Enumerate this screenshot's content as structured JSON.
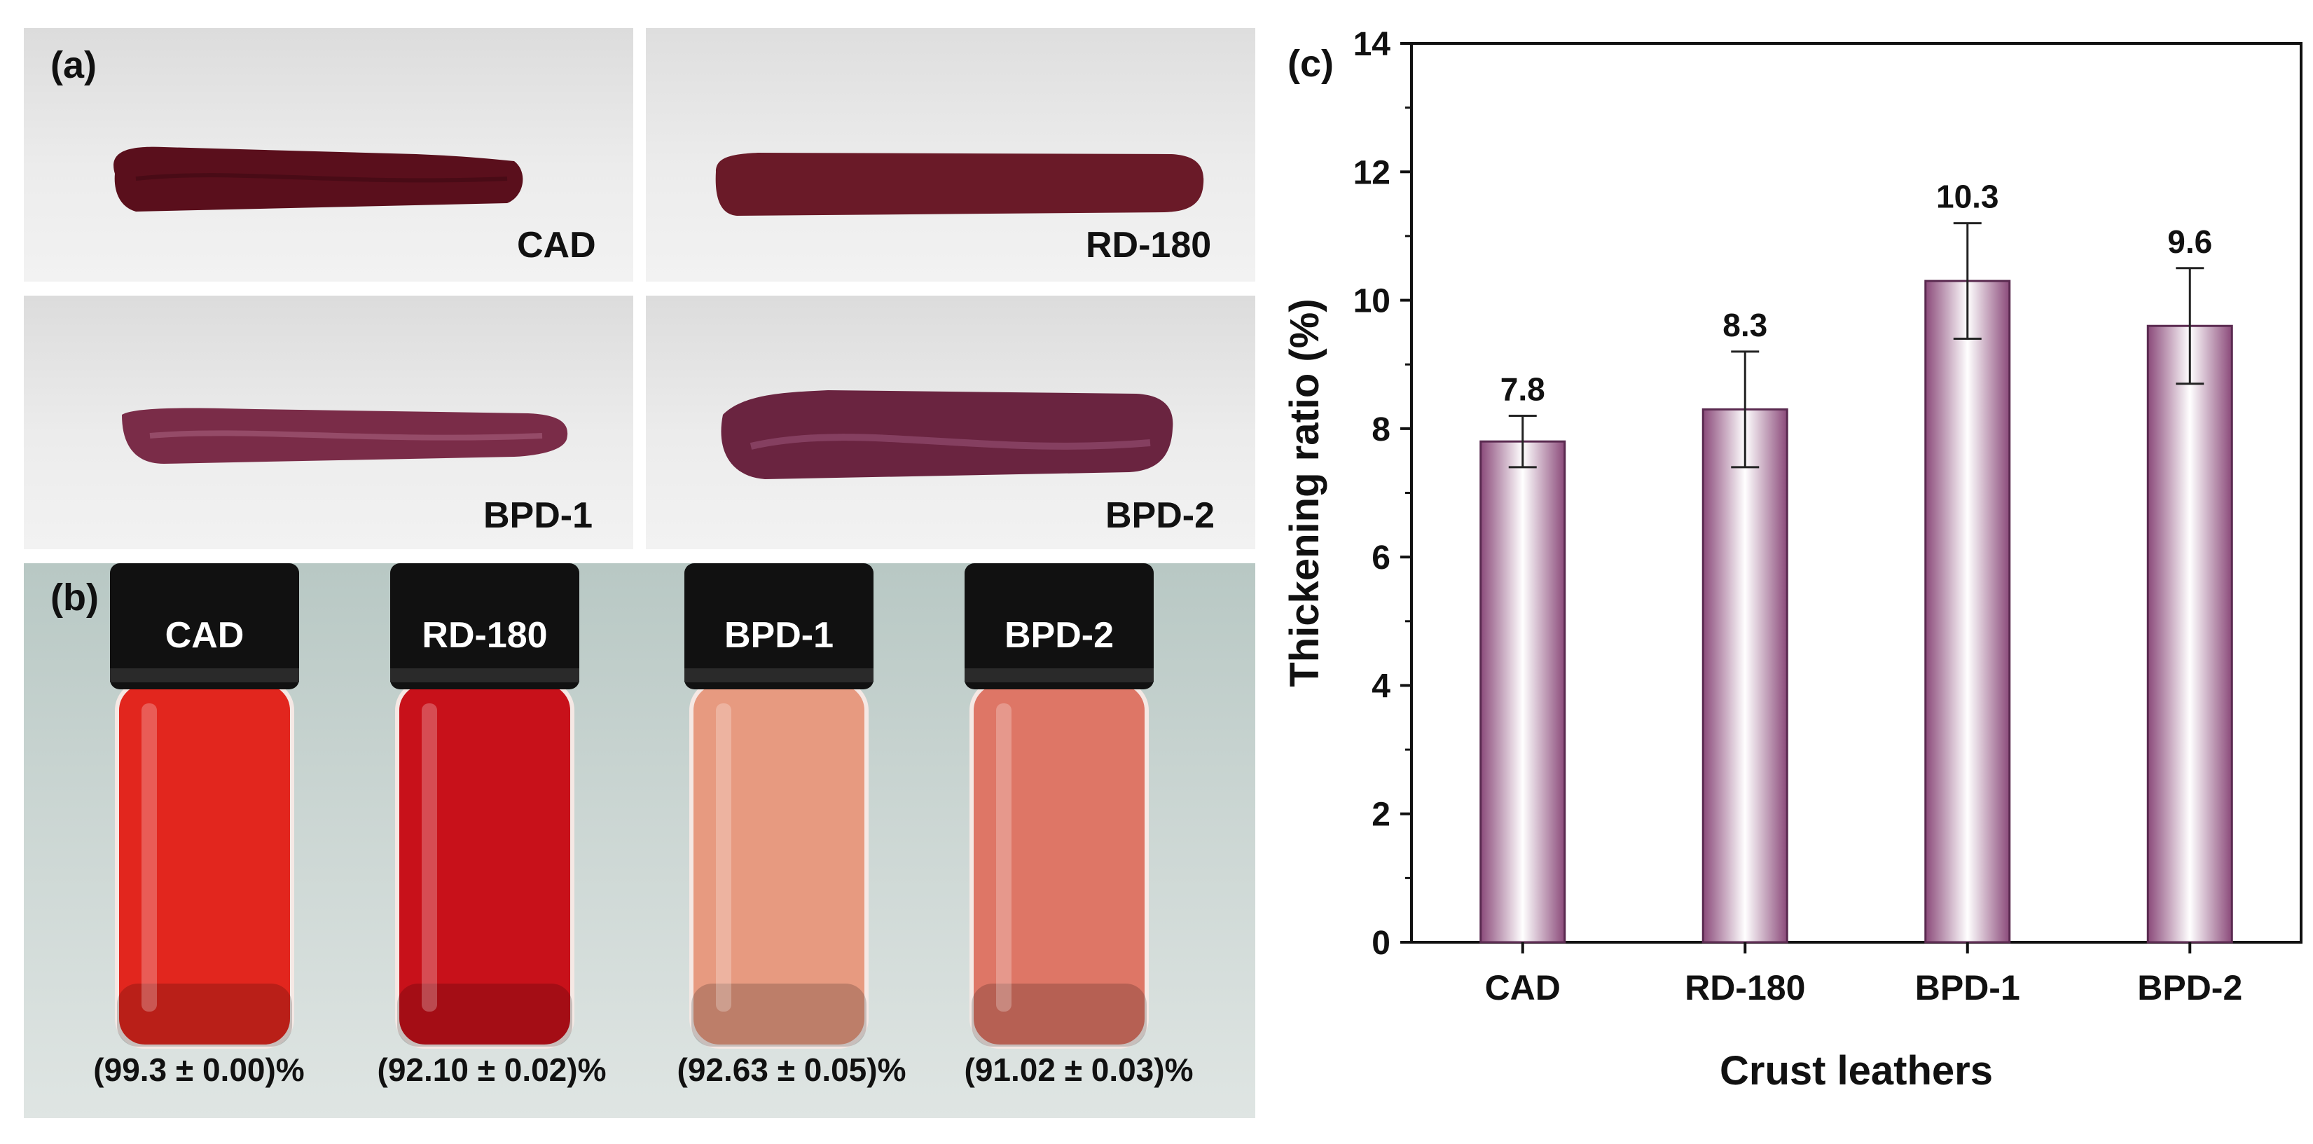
{
  "panel_a": {
    "label": "(a)",
    "samples": [
      "CAD",
      "RD-180",
      "BPD-1",
      "BPD-2"
    ],
    "colors": {
      "cad": "#5a0f1c",
      "rd": "#6a1a28",
      "bpd1": "#7a2c48",
      "bpd2": "#6a2440"
    }
  },
  "panel_b": {
    "label": "(b)",
    "vials": [
      {
        "name": "CAD",
        "value": "(99.3 ± 0.00)%",
        "liquid": "#e2261e"
      },
      {
        "name": "RD-180",
        "value": "(92.10 ± 0.02)%",
        "liquid": "#c8111a"
      },
      {
        "name": "BPD-1",
        "value": "(92.63 ± 0.05)%",
        "liquid": "#e79a80"
      },
      {
        "name": "BPD-2",
        "value": "(91.02 ± 0.03)%",
        "liquid": "#de7666"
      }
    ]
  },
  "chart_data": {
    "label": "(c)",
    "type": "bar",
    "categories": [
      "CAD",
      "RD-180",
      "BPD-1",
      "BPD-2"
    ],
    "values": [
      7.8,
      8.3,
      10.3,
      9.6
    ],
    "value_labels": [
      "7.8",
      "8.3",
      "10.3",
      "9.6"
    ],
    "errors": [
      0.4,
      0.9,
      0.9,
      0.9
    ],
    "xlabel": "Crust leathers",
    "ylabel": "Thickening ratio (%)",
    "ylim": [
      0,
      14
    ],
    "yticks": [
      "0",
      "2",
      "4",
      "6",
      "8",
      "10",
      "12",
      "14"
    ],
    "grid": false,
    "bar_color": "#8b4a7a"
  }
}
